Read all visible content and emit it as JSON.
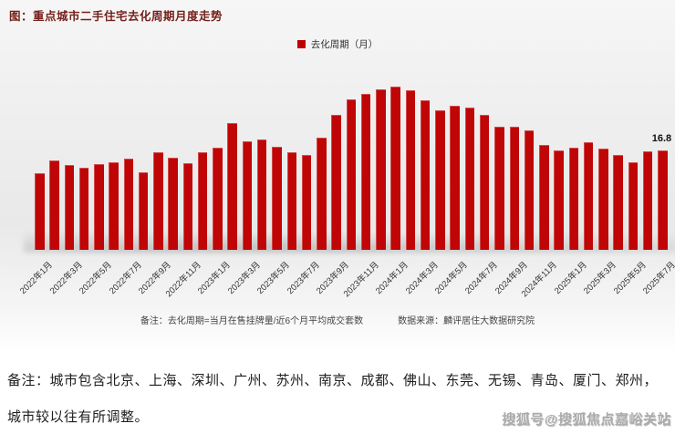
{
  "chart_data": {
    "type": "bar",
    "title": "图：重点城市二手住宅去化周期月度走势",
    "series_name": "去化周期（月）",
    "x": [
      "2022年1月",
      "2022年2月",
      "2022年3月",
      "2022年4月",
      "2022年5月",
      "2022年6月",
      "2022年7月",
      "2022年8月",
      "2022年9月",
      "2022年10月",
      "2022年11月",
      "2022年12月",
      "2023年1月",
      "2023年2月",
      "2023年3月",
      "2023年4月",
      "2023年5月",
      "2023年6月",
      "2023年7月",
      "2023年8月",
      "2023年9月",
      "2023年10月",
      "2023年11月",
      "2023年12月",
      "2024年1月",
      "2024年2月",
      "2024年3月",
      "2024年4月",
      "2024年5月",
      "2024年6月",
      "2024年7月",
      "2024年8月",
      "2024年9月",
      "2024年10月",
      "2024年11月",
      "2024年12月",
      "2025年1月",
      "2025年2月",
      "2025年3月",
      "2025年4月",
      "2025年5月",
      "2025年6月",
      "2025年7月"
    ],
    "values": [
      12.9,
      15.0,
      14.3,
      13.8,
      14.5,
      14.8,
      15.4,
      13.1,
      16.5,
      15.5,
      14.6,
      16.4,
      17.2,
      21.3,
      18.3,
      18.6,
      17.4,
      16.4,
      16.0,
      18.9,
      22.7,
      25.3,
      26.3,
      27.1,
      27.5,
      26.8,
      25.2,
      23.5,
      24.2,
      24.0,
      22.8,
      20.7,
      20.7,
      20.1,
      17.7,
      16.7,
      17.2,
      18.1,
      17.1,
      16.0,
      14.8,
      16.6,
      16.8
    ],
    "xtick_step": 2,
    "ylim": [
      0,
      28.4
    ],
    "grid": false,
    "bar_color": "#bf0505",
    "legend_position": "top-center",
    "last_value_label": "16.8"
  },
  "legend": {
    "label": "去化周期（月）",
    "swatch_color": "#c00000"
  },
  "footnotes": {
    "note": "备注：去化周期=当月在售挂牌量/近6个月平均成交套数",
    "source": "数据来源：麟评居住大数据研究院"
  },
  "bottom_note": {
    "line1": "备注：城市包含北京、上海、深圳、广州、苏州、南京、成都、佛山、东莞、无锡、青岛、厦门、郑州，",
    "line2": "城市较以往有所调整。"
  },
  "watermark": "搜狐号@搜狐焦点嘉峪关站"
}
